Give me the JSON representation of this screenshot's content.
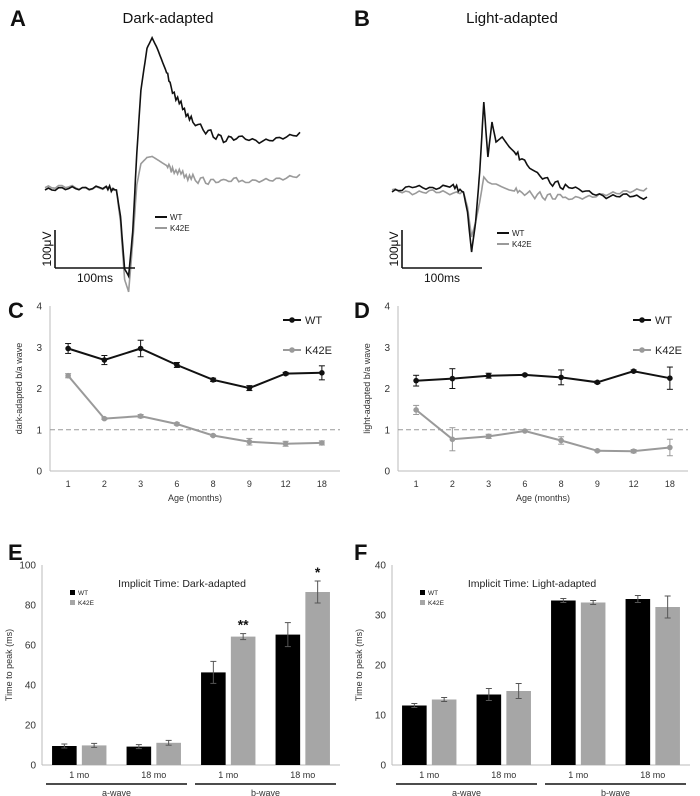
{
  "figure": {
    "panel_letters": [
      "A",
      "B",
      "C",
      "D",
      "E",
      "F"
    ]
  },
  "chart_data": [
    {
      "panel": "A",
      "type": "line",
      "title": "Dark-adapted",
      "legend": [
        "WT",
        "K42E"
      ],
      "legend_position": "bottom-center",
      "scale_bar": {
        "y_label": "100μV",
        "x_label": "100ms"
      },
      "colors": {
        "WT": "#111111",
        "K42E": "#9a9a9a"
      },
      "x_range": [
        0,
        250
      ],
      "y_range": [
        -1.0,
        1.5
      ],
      "series": [
        {
          "name": "WT",
          "x": [
            0,
            20,
            40,
            60,
            70,
            74,
            78,
            82,
            86,
            90,
            94,
            100,
            105,
            110,
            118,
            125,
            135,
            145,
            160,
            175,
            190,
            210,
            230,
            250
          ],
          "y": [
            0,
            0.01,
            0,
            0.01,
            0,
            -0.25,
            -0.75,
            -0.82,
            -0.4,
            0.35,
            0.95,
            1.35,
            1.45,
            1.35,
            1.15,
            0.95,
            0.78,
            0.65,
            0.55,
            0.48,
            0.5,
            0.46,
            0.5,
            0.55
          ]
        },
        {
          "name": "K42E",
          "x": [
            0,
            20,
            40,
            60,
            70,
            74,
            78,
            82,
            86,
            90,
            94,
            100,
            105,
            110,
            118,
            125,
            135,
            145,
            160,
            175,
            190,
            210,
            230,
            250
          ],
          "y": [
            0,
            0.02,
            0,
            0.02,
            0,
            -0.3,
            -0.85,
            -0.97,
            -0.5,
            0.05,
            0.25,
            0.31,
            0.32,
            0.29,
            0.24,
            0.2,
            0.15,
            0.11,
            0.08,
            0.09,
            0.1,
            0.11,
            0.12,
            0.15
          ]
        }
      ]
    },
    {
      "panel": "B",
      "type": "line",
      "title": "Light-adapted",
      "legend": [
        "WT",
        "K42E"
      ],
      "legend_position": "bottom-center",
      "scale_bar": {
        "y_label": "100μV",
        "x_label": "100ms"
      },
      "colors": {
        "WT": "#111111",
        "K42E": "#9a9a9a"
      },
      "x_range": [
        0,
        250
      ],
      "y_range": [
        -1.0,
        1.5
      ],
      "series": [
        {
          "name": "WT",
          "x": [
            0,
            20,
            40,
            60,
            70,
            74,
            78,
            82,
            86,
            90,
            94,
            98,
            102,
            108,
            115,
            125,
            140,
            155,
            170,
            190,
            210,
            230,
            250
          ],
          "y": [
            0,
            0.05,
            0.02,
            0.05,
            0,
            -0.2,
            -0.6,
            -0.3,
            0.2,
            0.9,
            0.35,
            0.7,
            0.5,
            0.55,
            0.45,
            0.35,
            0.2,
            0.1,
            0.05,
            0,
            -0.05,
            -0.02,
            -0.05
          ]
        },
        {
          "name": "K42E",
          "x": [
            0,
            20,
            40,
            60,
            70,
            74,
            78,
            82,
            86,
            90,
            94,
            98,
            102,
            108,
            115,
            125,
            140,
            155,
            170,
            190,
            210,
            230,
            250
          ],
          "y": [
            0,
            -0.03,
            0,
            -0.02,
            0,
            -0.15,
            -0.45,
            -0.3,
            -0.1,
            0.15,
            0.1,
            0.08,
            0.08,
            0.05,
            0.02,
            0,
            -0.03,
            -0.05,
            -0.04,
            -0.03,
            0,
            0.02,
            0.04
          ]
        }
      ]
    },
    {
      "panel": "C",
      "type": "line",
      "xlabel": "Age (months)",
      "ylabel": "dark-adapted b/a wave",
      "categories": [
        "1",
        "2",
        "3",
        "6",
        "8",
        "9",
        "12",
        "18"
      ],
      "ylim": [
        0,
        4
      ],
      "y_ticks": [
        "0",
        "1",
        "2",
        "3",
        "4"
      ],
      "reference_line": 1,
      "legend_position": "top-right",
      "series": [
        {
          "name": "WT",
          "color": "#111111",
          "values": [
            2.97,
            2.69,
            2.97,
            2.57,
            2.21,
            2.01,
            2.36,
            2.38
          ],
          "errors": [
            0.12,
            0.11,
            0.2,
            0.06,
            0.04,
            0.06,
            0.03,
            0.17
          ]
        },
        {
          "name": "K42E",
          "color": "#9a9a9a",
          "values": [
            2.31,
            1.27,
            1.33,
            1.14,
            0.86,
            0.71,
            0.66,
            0.68
          ],
          "errors": [
            0.05,
            0.02,
            0.04,
            0.03,
            0.02,
            0.08,
            0.06,
            0.05
          ]
        }
      ]
    },
    {
      "panel": "D",
      "type": "line",
      "xlabel": "Age (months)",
      "ylabel": "light-adapted b/a wave",
      "categories": [
        "1",
        "2",
        "3",
        "6",
        "8",
        "9",
        "12",
        "18"
      ],
      "ylim": [
        0,
        4
      ],
      "y_ticks": [
        "0",
        "1",
        "2",
        "3",
        "4"
      ],
      "reference_line": 1,
      "legend_position": "top-right",
      "series": [
        {
          "name": "WT",
          "color": "#111111",
          "values": [
            2.19,
            2.24,
            2.31,
            2.33,
            2.27,
            2.15,
            2.42,
            2.25
          ],
          "errors": [
            0.13,
            0.24,
            0.06,
            0.02,
            0.18,
            0.03,
            0.03,
            0.27
          ]
        },
        {
          "name": "K42E",
          "color": "#9a9a9a",
          "values": [
            1.48,
            0.77,
            0.84,
            0.97,
            0.74,
            0.49,
            0.48,
            0.57
          ],
          "errors": [
            0.11,
            0.28,
            0.05,
            0.02,
            0.09,
            0.02,
            0.04,
            0.2
          ]
        }
      ]
    },
    {
      "panel": "E",
      "type": "bar",
      "title": "Implicit Time: Dark-adapted",
      "ylabel": "Time to peak (ms)",
      "ylim": [
        0,
        100
      ],
      "y_ticks": [
        "0",
        "20",
        "40",
        "60",
        "80",
        "100"
      ],
      "legend_position": "top-left",
      "categories": [
        "1 mo",
        "18 mo",
        "1 mo",
        "18 mo"
      ],
      "groups": [
        {
          "label": "a-wave",
          "span": [
            0,
            1
          ]
        },
        {
          "label": "b-wave",
          "span": [
            2,
            3
          ]
        }
      ],
      "series": [
        {
          "name": "WT",
          "color": "#000000",
          "values": [
            9.5,
            9.2,
            46.3,
            65.2
          ],
          "errors": [
            1.0,
            1.0,
            5.5,
            6.0
          ]
        },
        {
          "name": "K42E",
          "color": "#a6a6a6",
          "values": [
            9.8,
            11.1,
            64.2,
            86.5
          ],
          "errors": [
            1.0,
            1.2,
            1.5,
            5.5
          ]
        }
      ],
      "significance": [
        {
          "index": 2,
          "label": "**"
        },
        {
          "index": 3,
          "label": "*"
        }
      ]
    },
    {
      "panel": "F",
      "type": "bar",
      "title": "Implicit Time: Light-adapted",
      "ylabel": "Time to peak (ms)",
      "ylim": [
        0,
        40
      ],
      "y_ticks": [
        "0",
        "10",
        "20",
        "30",
        "40"
      ],
      "legend_position": "top-left",
      "categories": [
        "1 mo",
        "18 mo",
        "1 mo",
        "18 mo"
      ],
      "groups": [
        {
          "label": "a-wave",
          "span": [
            0,
            1
          ]
        },
        {
          "label": "b-wave",
          "span": [
            2,
            3
          ]
        }
      ],
      "series": [
        {
          "name": "WT",
          "color": "#000000",
          "values": [
            11.9,
            14.1,
            32.9,
            33.2
          ],
          "errors": [
            0.4,
            1.2,
            0.4,
            0.7
          ]
        },
        {
          "name": "K42E",
          "color": "#a6a6a6",
          "values": [
            13.1,
            14.8,
            32.5,
            31.6
          ],
          "errors": [
            0.4,
            1.5,
            0.4,
            2.2
          ]
        }
      ]
    }
  ]
}
